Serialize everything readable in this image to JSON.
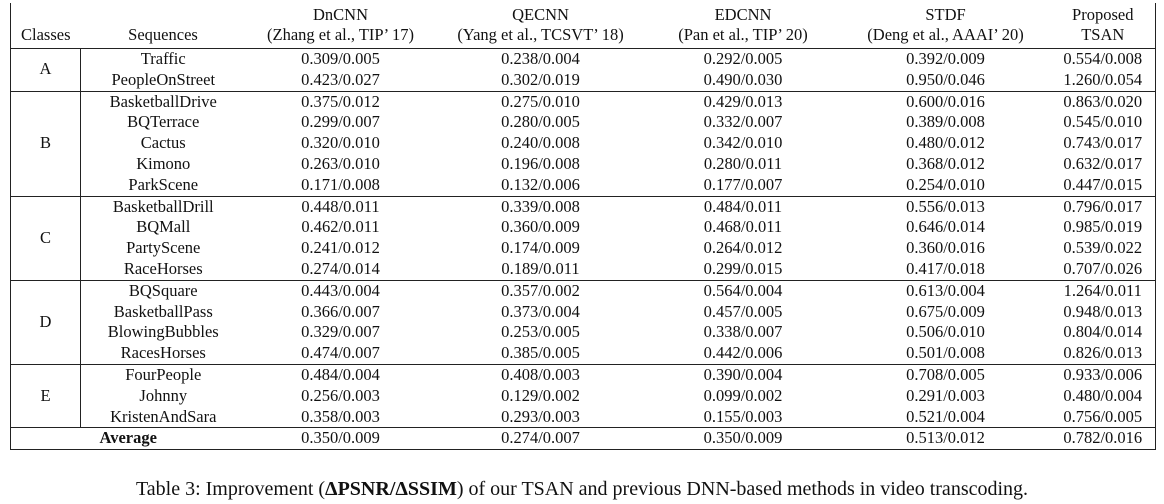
{
  "header": {
    "columns": [
      [
        "Classes"
      ],
      [
        "Sequences"
      ],
      [
        "DnCNN",
        "(Zhang et al., TIP’ 17)"
      ],
      [
        "QECNN",
        "(Yang et al., TCSVT’ 18)"
      ],
      [
        "EDCNN",
        "(Pan et al., TIP’ 20)"
      ],
      [
        "STDF",
        "(Deng et al., AAAI’ 20)"
      ],
      [
        "Proposed",
        "TSAN"
      ]
    ]
  },
  "groups": [
    {
      "class": "A",
      "rows": [
        [
          "Traffic",
          "0.309/0.005",
          "0.238/0.004",
          "0.292/0.005",
          "0.392/0.009",
          "0.554/0.008"
        ],
        [
          "PeopleOnStreet",
          "0.423/0.027",
          "0.302/0.019",
          "0.490/0.030",
          "0.950/0.046",
          "1.260/0.054"
        ]
      ]
    },
    {
      "class": "B",
      "rows": [
        [
          "BasketballDrive",
          "0.375/0.012",
          "0.275/0.010",
          "0.429/0.013",
          "0.600/0.016",
          "0.863/0.020"
        ],
        [
          "BQTerrace",
          "0.299/0.007",
          "0.280/0.005",
          "0.332/0.007",
          "0.389/0.008",
          "0.545/0.010"
        ],
        [
          "Cactus",
          "0.320/0.010",
          "0.240/0.008",
          "0.342/0.010",
          "0.480/0.012",
          "0.743/0.017"
        ],
        [
          "Kimono",
          "0.263/0.010",
          "0.196/0.008",
          "0.280/0.011",
          "0.368/0.012",
          "0.632/0.017"
        ],
        [
          "ParkScene",
          "0.171/0.008",
          "0.132/0.006",
          "0.177/0.007",
          "0.254/0.010",
          "0.447/0.015"
        ]
      ]
    },
    {
      "class": "C",
      "rows": [
        [
          "BasketballDrill",
          "0.448/0.011",
          "0.339/0.008",
          "0.484/0.011",
          "0.556/0.013",
          "0.796/0.017"
        ],
        [
          "BQMall",
          "0.462/0.011",
          "0.360/0.009",
          "0.468/0.011",
          "0.646/0.014",
          "0.985/0.019"
        ],
        [
          "PartyScene",
          "0.241/0.012",
          "0.174/0.009",
          "0.264/0.012",
          "0.360/0.016",
          "0.539/0.022"
        ],
        [
          "RaceHorses",
          "0.274/0.014",
          "0.189/0.011",
          "0.299/0.015",
          "0.417/0.018",
          "0.707/0.026"
        ]
      ]
    },
    {
      "class": "D",
      "rows": [
        [
          "BQSquare",
          "0.443/0.004",
          "0.357/0.002",
          "0.564/0.004",
          "0.613/0.004",
          "1.264/0.011"
        ],
        [
          "BasketballPass",
          "0.366/0.007",
          "0.373/0.004",
          "0.457/0.005",
          "0.675/0.009",
          "0.948/0.013"
        ],
        [
          "BlowingBubbles",
          "0.329/0.007",
          "0.253/0.005",
          "0.338/0.007",
          "0.506/0.010",
          "0.804/0.014"
        ],
        [
          "RacesHorses",
          "0.474/0.007",
          "0.385/0.005",
          "0.442/0.006",
          "0.501/0.008",
          "0.826/0.013"
        ]
      ]
    },
    {
      "class": "E",
      "rows": [
        [
          "FourPeople",
          "0.484/0.004",
          "0.408/0.003",
          "0.390/0.004",
          "0.708/0.005",
          "0.933/0.006"
        ],
        [
          "Johnny",
          "0.256/0.003",
          "0.129/0.002",
          "0.099/0.002",
          "0.291/0.003",
          "0.480/0.004"
        ],
        [
          "KristenAndSara",
          "0.358/0.003",
          "0.293/0.003",
          "0.155/0.003",
          "0.521/0.004",
          "0.756/0.005"
        ]
      ]
    }
  ],
  "average": {
    "label": "Average",
    "values": [
      "0.350/0.009",
      "0.274/0.007",
      "0.350/0.009",
      "0.513/0.012",
      "0.782/0.016"
    ]
  },
  "caption": {
    "prefix": "Table 3: Improvement (",
    "emphasis": "ΔPSNR/ΔSSIM",
    "suffix": ") of our TSAN and previous DNN-based methods in video transcoding."
  }
}
